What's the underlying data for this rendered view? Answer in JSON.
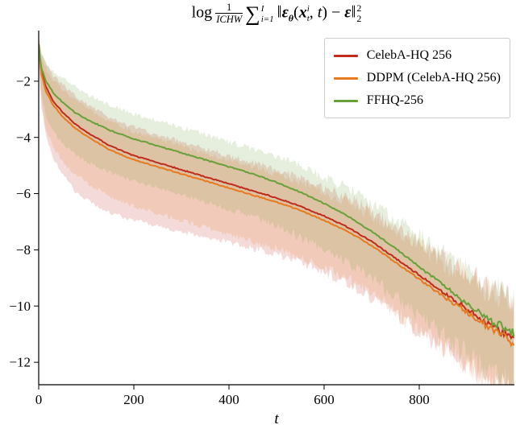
{
  "title": {
    "log": "log",
    "frac_num": "1",
    "frac_den": "ICHW",
    "sum": "∑",
    "sum_top": "I",
    "sum_bot": "i=1",
    "norm_l": "‖",
    "eps": "ε",
    "eps_sub": "θ",
    "paren_l": "(",
    "x": "x",
    "x_top": "i",
    "x_bot": "t",
    "comma": ",",
    "t_arg": "t",
    "paren_r": ")",
    "minus": "−",
    "eps2": "ε",
    "norm_r": "‖",
    "sup2": "2",
    "sub2": "2"
  },
  "chart_data": {
    "type": "line",
    "title": "log (1/ICHW) Σ_{i=1}^{I} ‖ε_θ(x_t^i, t) − ε‖_2^2",
    "xlabel": "t",
    "ylabel": "",
    "xlim": [
      0,
      1000
    ],
    "ylim": [
      -12.8,
      -0.2
    ],
    "xticks": [
      0,
      200,
      400,
      600,
      800
    ],
    "yticks": [
      -2,
      -4,
      -6,
      -8,
      -10,
      -12
    ],
    "grid": false,
    "legend_position": "upper right",
    "x": [
      0,
      5,
      15,
      30,
      50,
      75,
      100,
      150,
      200,
      250,
      300,
      350,
      400,
      450,
      500,
      550,
      600,
      650,
      700,
      750,
      800,
      850,
      900,
      950,
      1000
    ],
    "series": [
      {
        "name": "CelebA-HQ 256",
        "color": "#c02b1d",
        "mean": [
          -0.7,
          -1.6,
          -2.2,
          -2.7,
          -3.1,
          -3.5,
          -3.8,
          -4.3,
          -4.65,
          -4.9,
          -5.15,
          -5.4,
          -5.65,
          -5.9,
          -6.15,
          -6.45,
          -6.8,
          -7.2,
          -7.7,
          -8.3,
          -8.9,
          -9.5,
          -10.1,
          -10.7,
          -11.2
        ],
        "upper": [
          -0.4,
          -1.0,
          -1.4,
          -1.8,
          -2.1,
          -2.5,
          -2.8,
          -3.3,
          -3.65,
          -3.9,
          -4.15,
          -4.4,
          -4.65,
          -4.9,
          -5.15,
          -5.45,
          -5.8,
          -6.15,
          -6.6,
          -7.2,
          -7.7,
          -8.3,
          -8.8,
          -9.4,
          -9.8
        ],
        "lower": [
          -1.2,
          -2.8,
          -3.9,
          -4.7,
          -5.3,
          -5.9,
          -6.2,
          -6.7,
          -6.95,
          -7.15,
          -7.35,
          -7.55,
          -7.75,
          -7.95,
          -8.15,
          -8.45,
          -8.8,
          -9.2,
          -9.7,
          -10.3,
          -10.9,
          -11.5,
          -12.1,
          -12.7,
          -13.2
        ]
      },
      {
        "name": "DDPM (CelebA-HQ 256)",
        "color": "#e8791e",
        "mean": [
          -0.7,
          -1.7,
          -2.35,
          -2.85,
          -3.25,
          -3.65,
          -3.95,
          -4.45,
          -4.8,
          -5.05,
          -5.3,
          -5.55,
          -5.8,
          -6.05,
          -6.3,
          -6.6,
          -6.95,
          -7.35,
          -7.85,
          -8.45,
          -9.05,
          -9.65,
          -10.2,
          -10.8,
          -11.3
        ],
        "upper": [
          -0.4,
          -1.1,
          -1.55,
          -1.95,
          -2.3,
          -2.65,
          -2.95,
          -3.45,
          -3.8,
          -4.05,
          -4.3,
          -4.55,
          -4.8,
          -5.05,
          -5.3,
          -5.6,
          -5.95,
          -6.3,
          -6.75,
          -7.35,
          -7.85,
          -8.45,
          -8.9,
          -9.5,
          -9.9
        ],
        "lower": [
          -1.2,
          -2.7,
          -3.65,
          -4.35,
          -4.85,
          -5.3,
          -5.6,
          -6.1,
          -6.45,
          -6.7,
          -6.95,
          -7.2,
          -7.45,
          -7.7,
          -7.95,
          -8.25,
          -8.6,
          -9.05,
          -9.55,
          -10.2,
          -10.85,
          -11.45,
          -12.05,
          -12.7,
          -13.2
        ]
      },
      {
        "name": "FFHQ-256",
        "color": "#68a03a",
        "mean": [
          -0.7,
          -1.5,
          -2.0,
          -2.4,
          -2.75,
          -3.1,
          -3.35,
          -3.75,
          -4.05,
          -4.3,
          -4.55,
          -4.8,
          -5.05,
          -5.3,
          -5.6,
          -5.95,
          -6.35,
          -6.8,
          -7.35,
          -7.95,
          -8.6,
          -9.25,
          -9.9,
          -10.5,
          -11.0
        ],
        "upper": [
          -0.4,
          -1.0,
          -1.35,
          -1.65,
          -1.9,
          -2.2,
          -2.45,
          -2.85,
          -3.15,
          -3.4,
          -3.65,
          -3.9,
          -4.15,
          -4.4,
          -4.7,
          -5.0,
          -5.4,
          -5.8,
          -6.35,
          -6.9,
          -7.5,
          -8.15,
          -8.75,
          -9.3,
          -9.8
        ],
        "lower": [
          -1.2,
          -2.4,
          -3.2,
          -3.75,
          -4.2,
          -4.6,
          -4.85,
          -5.25,
          -5.55,
          -5.8,
          -6.05,
          -6.3,
          -6.55,
          -6.8,
          -7.15,
          -7.55,
          -7.95,
          -8.45,
          -9.05,
          -9.65,
          -10.35,
          -11.05,
          -11.7,
          -12.35,
          -12.9
        ]
      }
    ]
  }
}
